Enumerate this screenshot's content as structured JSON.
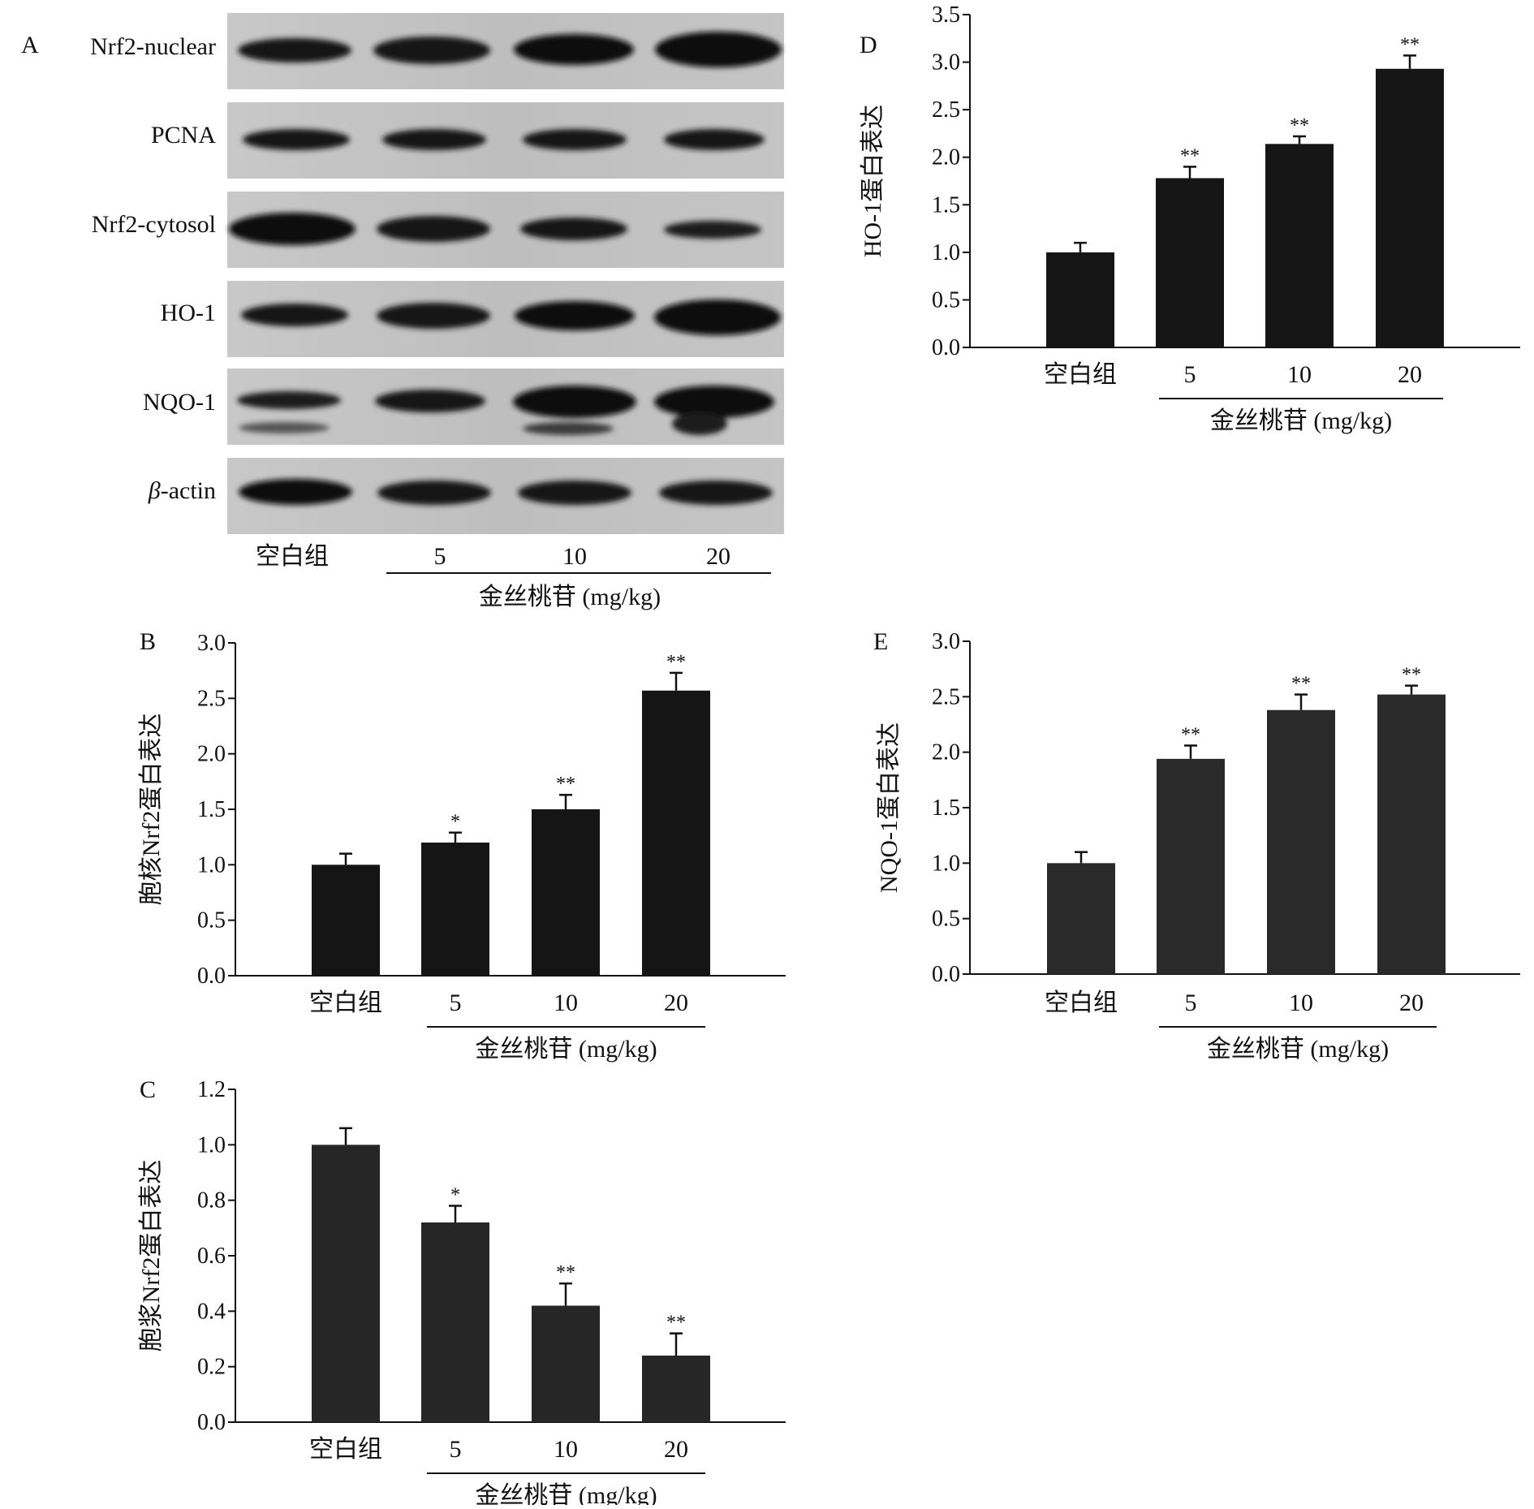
{
  "panel_A": {
    "letter": "A",
    "lanes": [
      {
        "label": "Nrf2-nuclear"
      },
      {
        "label": "PCNA"
      },
      {
        "label": "Nrf2-cytosol"
      },
      {
        "label": "HO-1"
      },
      {
        "label": "NQO-1"
      },
      {
        "label_greek": "β",
        "label_rest": "-actin"
      }
    ],
    "categories": [
      "空白组",
      "5",
      "10",
      "20"
    ],
    "group_label": "金丝桃苷 (mg/kg)"
  },
  "chart_data": [
    {
      "panel": "B",
      "type": "bar",
      "categories": [
        "空白组",
        "5",
        "10",
        "20"
      ],
      "values": [
        1.0,
        1.2,
        1.5,
        2.57
      ],
      "errors": [
        0.1,
        0.09,
        0.13,
        0.16
      ],
      "significance": [
        "",
        "*",
        "**",
        "**"
      ],
      "ylabel": "胞核Nrf2蛋白表达",
      "xgroup_label": "金丝桃苷 (mg/kg)",
      "ylim": [
        0,
        3.0
      ],
      "yticks": [
        "0.0",
        "0.5",
        "1.0",
        "1.5",
        "2.0",
        "2.5",
        "3.0"
      ],
      "bar_color": "#151515"
    },
    {
      "panel": "C",
      "type": "bar",
      "categories": [
        "空白组",
        "5",
        "10",
        "20"
      ],
      "values": [
        1.0,
        0.72,
        0.42,
        0.24
      ],
      "errors": [
        0.06,
        0.06,
        0.08,
        0.08
      ],
      "significance": [
        "",
        "*",
        "**",
        "**"
      ],
      "ylabel": "胞浆Nrf2蛋白表达",
      "xgroup_label": "金丝桃苷 (mg/kg)",
      "ylim": [
        0,
        1.2
      ],
      "yticks": [
        "0.0",
        "0.2",
        "0.4",
        "0.6",
        "0.8",
        "1.0",
        "1.2"
      ],
      "bar_color": "#262626"
    },
    {
      "panel": "D",
      "type": "bar",
      "categories": [
        "空白组",
        "5",
        "10",
        "20"
      ],
      "values": [
        1.0,
        1.78,
        2.14,
        2.93
      ],
      "errors": [
        0.1,
        0.12,
        0.08,
        0.14
      ],
      "significance": [
        "",
        "**",
        "**",
        "**"
      ],
      "ylabel": "HO-1蛋白表达",
      "xgroup_label": "金丝桃苷 (mg/kg)",
      "ylim": [
        0,
        3.5
      ],
      "yticks": [
        "0.0",
        "0.5",
        "1.0",
        "1.5",
        "2.0",
        "2.5",
        "3.0",
        "3.5"
      ],
      "bar_color": "#151515"
    },
    {
      "panel": "E",
      "type": "bar",
      "categories": [
        "空白组",
        "5",
        "10",
        "20"
      ],
      "values": [
        1.0,
        1.94,
        2.38,
        2.52
      ],
      "errors": [
        0.1,
        0.12,
        0.14,
        0.08
      ],
      "significance": [
        "",
        "**",
        "**",
        "**"
      ],
      "ylabel": "NQO-1蛋白表达",
      "xgroup_label": "金丝桃苷 (mg/kg)",
      "ylim": [
        0,
        3.0
      ],
      "yticks": [
        "0.0",
        "0.5",
        "1.0",
        "1.5",
        "2.0",
        "2.5",
        "3.0"
      ],
      "bar_color": "#2a2a2a"
    }
  ]
}
